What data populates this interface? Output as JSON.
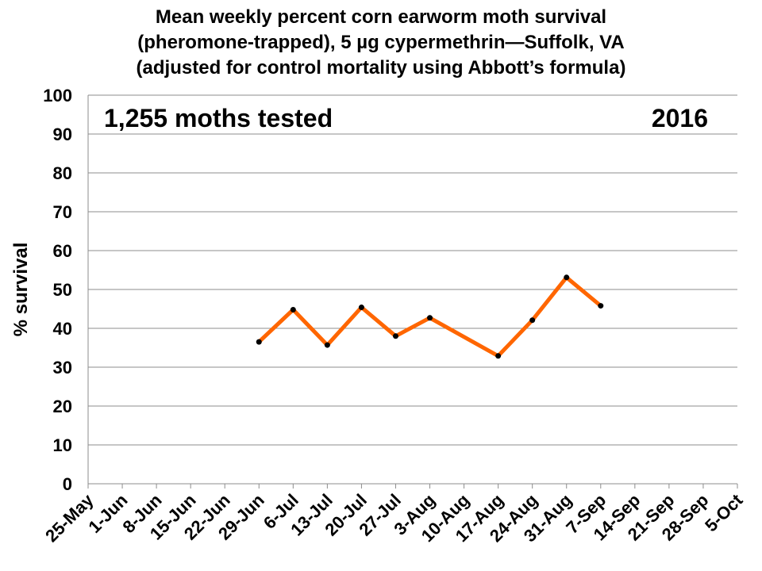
{
  "chart_data": {
    "type": "line",
    "title_lines": [
      "Mean weekly percent corn earworm moth survival",
      "(pheromone-trapped), 5 µg cypermethrin—Suffolk, VA",
      "(adjusted for control mortality using Abbott’s formula)"
    ],
    "ylabel": "% survival",
    "xlabel": "",
    "ylim": [
      0,
      100
    ],
    "y_ticks": [
      0,
      10,
      20,
      30,
      40,
      50,
      60,
      70,
      80,
      90,
      100
    ],
    "categories": [
      "25-May",
      "1-Jun",
      "8-Jun",
      "15-Jun",
      "22-Jun",
      "29-Jun",
      "6-Jul",
      "13-Jul",
      "20-Jul",
      "27-Jul",
      "3-Aug",
      "10-Aug",
      "17-Aug",
      "24-Aug",
      "31-Aug",
      "7-Sep",
      "14-Sep",
      "21-Sep",
      "28-Sep",
      "5-Oct"
    ],
    "annotations": {
      "moths_tested": "1,255 moths tested",
      "year": "2016"
    },
    "grid": true,
    "series": [
      {
        "color": "#FF6600",
        "points": [
          {
            "x": "29-Jun",
            "y": 36.5
          },
          {
            "x": "6-Jul",
            "y": 44.8
          },
          {
            "x": "13-Jul",
            "y": 35.7
          },
          {
            "x": "20-Jul",
            "y": 45.4
          },
          {
            "x": "27-Jul",
            "y": 38.0
          },
          {
            "x": "3-Aug",
            "y": 42.7
          },
          {
            "x": "17-Aug",
            "y": 32.9
          },
          {
            "x": "24-Aug",
            "y": 42.1
          },
          {
            "x": "31-Aug",
            "y": 53.1
          },
          {
            "x": "7-Sep",
            "y": 45.8
          }
        ]
      }
    ]
  }
}
